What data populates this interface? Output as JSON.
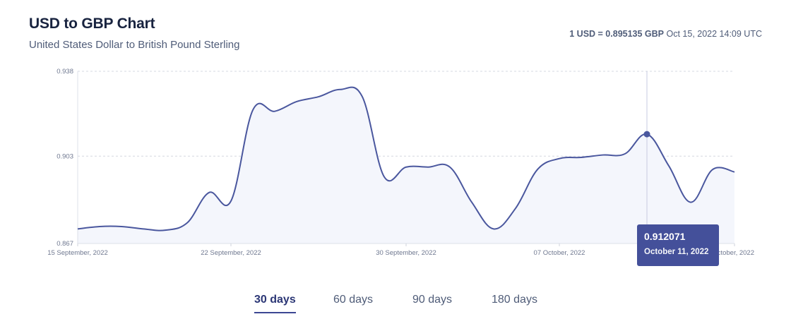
{
  "header": {
    "title": "USD to GBP Chart",
    "subtitle": "United States Dollar to British Pound Sterling",
    "rate_strong": "1 USD = 0.895135 GBP",
    "rate_time": "Oct 15, 2022 14:09 UTC"
  },
  "tooltip": {
    "value": "0.912071",
    "date": "October 11, 2022"
  },
  "tabs": [
    {
      "label": "30 days",
      "active": true
    },
    {
      "label": "60 days",
      "active": false
    },
    {
      "label": "90 days",
      "active": false
    },
    {
      "label": "180 days",
      "active": false
    }
  ],
  "colors": {
    "line": "#4a579e",
    "fill": "#f4f6fc",
    "grid": "#d5d8e0",
    "tooltip": "#44509a"
  },
  "chart_data": {
    "type": "area",
    "title": "USD to GBP Chart",
    "xlabel": "",
    "ylabel": "",
    "ylim": [
      0.867,
      0.938
    ],
    "yticks": [
      "0.938",
      "0.903",
      "0.867"
    ],
    "ytick_values": [
      0.938,
      0.903,
      0.867
    ],
    "xtick_labels": [
      "15 September, 2022",
      "22 September, 2022",
      "30 September, 2022",
      "07 October, 2022",
      "October, 2022"
    ],
    "xtick_days": [
      0,
      7,
      15,
      22,
      30
    ],
    "grid": true,
    "highlight": {
      "day": 26,
      "value": 0.912071
    },
    "series": [
      {
        "x_days": [
          0,
          1,
          2,
          3,
          4,
          5,
          6,
          7,
          8,
          9,
          10,
          11,
          12,
          13,
          14,
          15,
          16,
          17,
          18,
          19,
          20,
          21,
          22,
          23,
          24,
          25,
          26,
          27,
          28,
          29,
          30
        ],
        "values": [
          0.873,
          0.874,
          0.874,
          0.873,
          0.8725,
          0.8755,
          0.888,
          0.8845,
          0.922,
          0.9215,
          0.9255,
          0.9275,
          0.9305,
          0.9275,
          0.8945,
          0.8985,
          0.8985,
          0.8985,
          0.884,
          0.873,
          0.8815,
          0.8975,
          0.902,
          0.9025,
          0.9035,
          0.904,
          0.912071,
          0.899,
          0.884,
          0.8975,
          0.8965
        ]
      }
    ]
  }
}
